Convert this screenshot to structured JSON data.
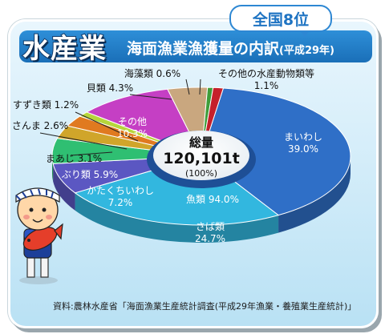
{
  "header": {
    "title": "水産業",
    "subtitle": "海面漁業漁獲量の内訳",
    "subtitle_year": "(平成29年)",
    "rank_badge": "全国8位"
  },
  "center": {
    "label": "総量",
    "value": "120,101t",
    "pct": "(100%)"
  },
  "inner_label": "魚類 94.0%",
  "source": "資料:農林水産省「海面漁業生産統計調査(平成29年漁業・養殖業生産統計)」",
  "chart_data": {
    "type": "pie",
    "title": "海面漁業漁獲量の内訳",
    "total": "120,101t",
    "series": [
      {
        "label": "まいわし",
        "value": 39.0,
        "color": "#2f6fc7"
      },
      {
        "label": "さば類",
        "value": 24.7,
        "color": "#32b7df"
      },
      {
        "label": "かたくちいわし",
        "value": 7.2,
        "color": "#5b57c2"
      },
      {
        "label": "ぶり類",
        "value": 5.9,
        "color": "#2fbf72"
      },
      {
        "label": "まあじ",
        "value": 3.1,
        "color": "#d0a52a"
      },
      {
        "label": "さんま",
        "value": 2.6,
        "color": "#e07a20"
      },
      {
        "label": "すずき類",
        "value": 1.2,
        "color": "#b6d63b"
      },
      {
        "label": "その他",
        "value": 10.3,
        "color": "#c53fc4"
      },
      {
        "label": "貝類",
        "value": 4.3,
        "color": "#c9a77f"
      },
      {
        "label": "海藻類",
        "value": 0.6,
        "color": "#3f9d3a"
      },
      {
        "label": "その他の水産動物類等",
        "value": 1.1,
        "color": "#c5202b"
      }
    ],
    "group_label": "魚類 94.0%"
  },
  "colors": {
    "title_band": "#1a6fb8",
    "card_bg": "#cdeaf8"
  }
}
